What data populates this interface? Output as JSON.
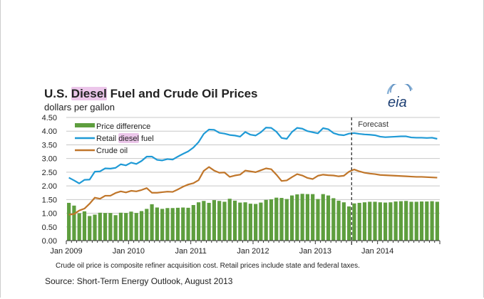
{
  "chart_data": {
    "type": "bar+line",
    "title_parts": [
      "U.S. ",
      "Diesel",
      " Fuel and Crude Oil Prices"
    ],
    "subtitle": "dollars per gallon",
    "ylabel": "dollars per gallon",
    "ylim": [
      0,
      4.5
    ],
    "yticks": [
      "0.00",
      "0.50",
      "1.00",
      "1.50",
      "2.00",
      "2.50",
      "3.00",
      "3.50",
      "4.00",
      "4.50"
    ],
    "xticks": [
      "Jan 2009",
      "Jan 2010",
      "Jan 2011",
      "Jan 2012",
      "Jan 2013",
      "Jan 2014"
    ],
    "x_start": "Jan 2009",
    "months": 72,
    "forecast_start_index": 55,
    "forecast_label": "Forecast",
    "legend": {
      "placement": "top-left",
      "items": [
        {
          "label": "Price difference",
          "parts": [
            "Price difference"
          ]
        },
        {
          "label": "Retail diesel fuel",
          "parts": [
            "Retail ",
            "diesel",
            " fuel"
          ]
        },
        {
          "label": "Crude oil",
          "parts": [
            "Crude oil"
          ]
        }
      ]
    },
    "series": [
      {
        "name": "Price difference",
        "kind": "bar",
        "color": "#5e9e3e",
        "values": [
          1.38,
          1.28,
          1.0,
          1.07,
          0.9,
          0.95,
          1.02,
          1.01,
          1.01,
          0.93,
          1.02,
          1.01,
          1.06,
          1.01,
          1.08,
          1.16,
          1.33,
          1.21,
          1.16,
          1.19,
          1.19,
          1.2,
          1.21,
          1.2,
          1.3,
          1.4,
          1.45,
          1.38,
          1.48,
          1.45,
          1.42,
          1.53,
          1.46,
          1.39,
          1.4,
          1.35,
          1.34,
          1.39,
          1.49,
          1.51,
          1.57,
          1.56,
          1.52,
          1.65,
          1.69,
          1.71,
          1.7,
          1.7,
          1.52,
          1.7,
          1.65,
          1.55,
          1.46,
          1.4,
          1.25,
          1.36,
          1.38,
          1.4,
          1.42,
          1.42,
          1.4,
          1.39,
          1.4,
          1.43,
          1.44,
          1.45,
          1.42,
          1.42,
          1.43,
          1.43,
          1.44,
          1.42
        ]
      },
      {
        "name": "Retail diesel fuel",
        "kind": "line",
        "color": "#1f9ad6",
        "values": [
          2.3,
          2.2,
          2.09,
          2.22,
          2.23,
          2.52,
          2.53,
          2.64,
          2.63,
          2.66,
          2.79,
          2.75,
          2.85,
          2.8,
          2.91,
          3.07,
          3.07,
          2.95,
          2.93,
          2.98,
          2.96,
          3.07,
          3.17,
          3.26,
          3.4,
          3.6,
          3.9,
          4.06,
          4.05,
          3.94,
          3.91,
          3.86,
          3.84,
          3.8,
          3.97,
          3.87,
          3.84,
          3.96,
          4.13,
          4.12,
          3.98,
          3.75,
          3.72,
          3.97,
          4.12,
          4.09,
          4.0,
          3.96,
          3.92,
          4.11,
          4.07,
          3.93,
          3.87,
          3.85,
          3.91,
          3.93,
          3.9,
          3.88,
          3.87,
          3.85,
          3.8,
          3.78,
          3.79,
          3.8,
          3.81,
          3.81,
          3.77,
          3.76,
          3.76,
          3.75,
          3.76,
          3.72
        ]
      },
      {
        "name": "Crude oil",
        "kind": "line",
        "color": "#c0762a",
        "values": [
          0.95,
          0.97,
          1.1,
          1.17,
          1.35,
          1.57,
          1.53,
          1.64,
          1.64,
          1.74,
          1.8,
          1.76,
          1.82,
          1.8,
          1.85,
          1.92,
          1.75,
          1.75,
          1.77,
          1.79,
          1.78,
          1.87,
          1.97,
          2.05,
          2.1,
          2.21,
          2.55,
          2.69,
          2.56,
          2.48,
          2.49,
          2.33,
          2.38,
          2.41,
          2.56,
          2.53,
          2.5,
          2.57,
          2.64,
          2.61,
          2.41,
          2.18,
          2.2,
          2.32,
          2.43,
          2.38,
          2.29,
          2.25,
          2.37,
          2.41,
          2.39,
          2.38,
          2.35,
          2.37,
          2.52,
          2.6,
          2.53,
          2.48,
          2.45,
          2.43,
          2.4,
          2.39,
          2.38,
          2.37,
          2.36,
          2.35,
          2.34,
          2.33,
          2.33,
          2.32,
          2.31,
          2.3
        ]
      }
    ],
    "grid": true
  },
  "footnote": "Crude oil price is composite refiner acquisition cost.  Retail prices include state and federal taxes.",
  "source": "Source: Short-Term Energy Outlook, August 2013",
  "logo_text": "eia"
}
